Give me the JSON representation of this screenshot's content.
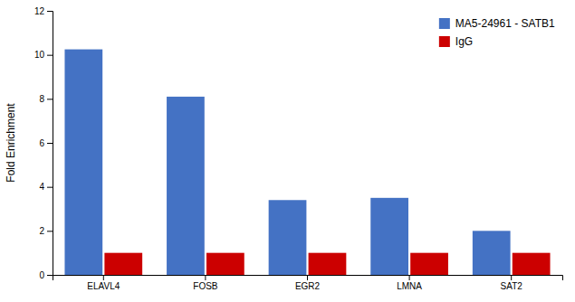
{
  "chart_data": {
    "type": "bar",
    "ylabel": "Fold Enrichment",
    "categories": [
      "ELAVL4",
      "FOSB",
      "EGR2",
      "LMNA",
      "SAT2"
    ],
    "series": [
      {
        "name": "MA5-24961 - SATB1",
        "color": "#4472C4",
        "values": [
          10.25,
          8.1,
          3.4,
          3.5,
          2.0
        ]
      },
      {
        "name": "IgG",
        "color": "#CC0000",
        "values": [
          1.0,
          1.0,
          1.0,
          1.0,
          1.0
        ]
      }
    ],
    "ylim": [
      0,
      12
    ],
    "yticks": [
      0,
      2,
      4,
      6,
      8,
      10,
      12
    ],
    "legend": "upper right"
  }
}
